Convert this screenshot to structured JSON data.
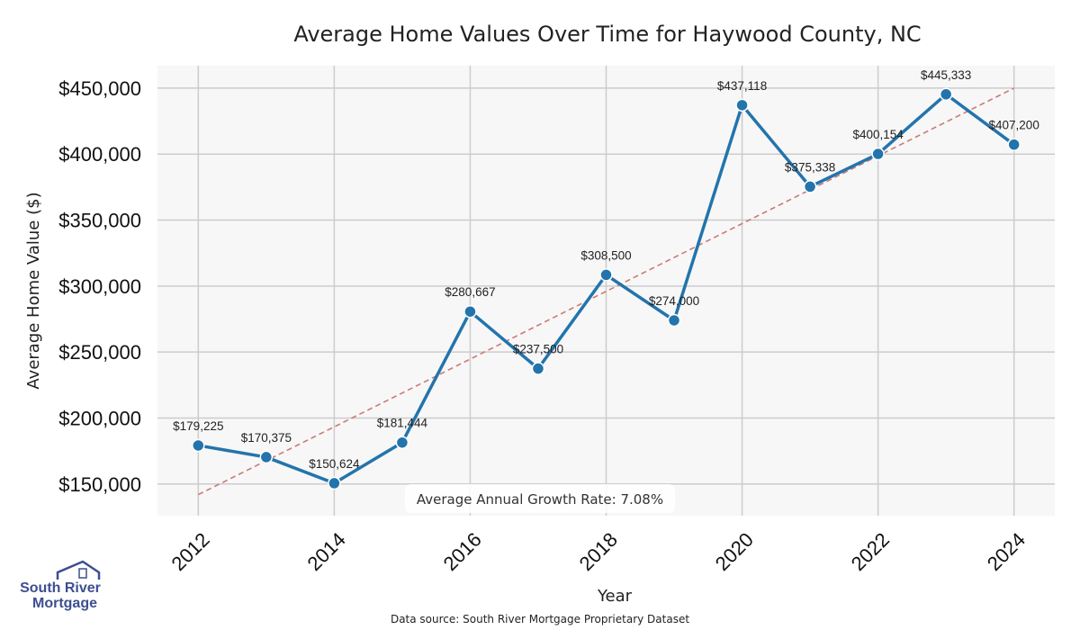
{
  "chart_data": {
    "type": "line",
    "title": "Average Home Values Over Time for Haywood County, NC",
    "xlabel": "Year",
    "ylabel": "Average Home Value ($)",
    "x": [
      2012,
      2013,
      2014,
      2015,
      2016,
      2017,
      2018,
      2019,
      2020,
      2021,
      2022,
      2023,
      2024
    ],
    "values": [
      179225,
      170375,
      150624,
      181444,
      280667,
      237500,
      308500,
      274000,
      437118,
      375338,
      400154,
      445333,
      407200
    ],
    "value_labels": [
      "$179,225",
      "$170,375",
      "$150,624",
      "$181,444",
      "$280,667",
      "$237,500",
      "$308,500",
      "$274,000",
      "$437,118",
      "$375,338",
      "$400,154",
      "$445,333",
      "$407,200"
    ],
    "xticks": [
      2012,
      2014,
      2016,
      2018,
      2020,
      2022,
      2024
    ],
    "xtick_labels": [
      "2012",
      "2014",
      "2016",
      "2018",
      "2020",
      "2022",
      "2024"
    ],
    "yticks": [
      150000,
      200000,
      250000,
      300000,
      350000,
      400000,
      450000
    ],
    "ytick_labels": [
      "$150,000",
      "$200,000",
      "$250,000",
      "$300,000",
      "$350,000",
      "$400,000",
      "$450,000"
    ],
    "xlim": [
      2011.4,
      2024.6
    ],
    "ylim": [
      126000,
      467000
    ],
    "trend_line": {
      "x": [
        2012,
        2024
      ],
      "y": [
        142000,
        450000
      ],
      "style": "dashed"
    },
    "annotation": "Average Annual Growth Rate: 7.08%",
    "grid": true,
    "colors": {
      "line": "#2374ac",
      "trend": "#cd7a75",
      "plot_bg": "#f7f7f7",
      "grid": "#cccccc"
    }
  },
  "footer": {
    "source": "Data source: South River Mortgage Proprietary Dataset"
  },
  "logo": {
    "line1": "South River",
    "line2": "Mortgage",
    "color": "#3d4f8f"
  }
}
